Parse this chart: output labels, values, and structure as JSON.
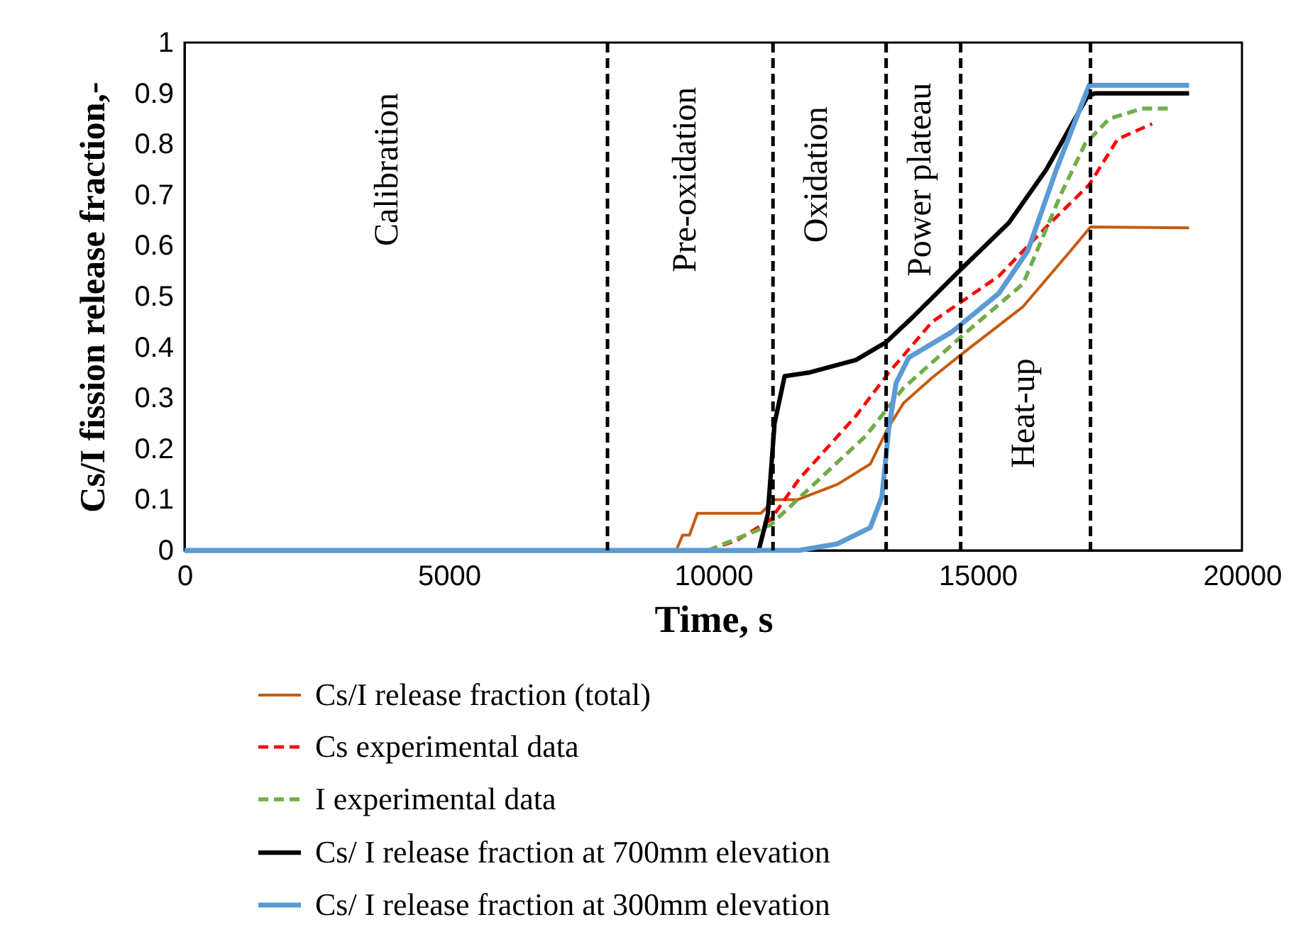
{
  "chart_data": {
    "type": "line",
    "xlabel": "Time, s",
    "ylabel": "Cs/I fission release fraction,-",
    "xlim": [
      0,
      20000
    ],
    "xticks": [
      0,
      5000,
      10000,
      15000,
      20000
    ],
    "ylim": [
      0,
      1
    ],
    "yticks": [
      0,
      0.1,
      0.2,
      0.3,
      0.4,
      0.5,
      0.6,
      0.7,
      0.8,
      0.9,
      1
    ],
    "legend": "bottom",
    "series": [
      {
        "name": "Cs/I release fraction (total)",
        "color": "#c55a11",
        "line_style": "solid",
        "x": [
          0,
          9300,
          9420,
          9550,
          9700,
          10900,
          11160,
          11600,
          12350,
          12970,
          13300,
          13600,
          14140,
          14680,
          15860,
          16760,
          17135,
          19000
        ],
        "values": [
          0,
          0,
          0.03,
          0.03,
          0.073,
          0.073,
          0.1,
          0.1,
          0.13,
          0.17,
          0.24,
          0.29,
          0.34,
          0.385,
          0.48,
          0.59,
          0.637,
          0.635
        ]
      },
      {
        "name": "Cs experimental data",
        "color": "#ff0000",
        "line_style": "dashed",
        "x": [
          9900,
          10450,
          11080,
          11620,
          12700,
          13320,
          14140,
          15400,
          16300,
          17110,
          17650,
          18300
        ],
        "values": [
          0,
          0.02,
          0.06,
          0.14,
          0.265,
          0.35,
          0.45,
          0.54,
          0.637,
          0.72,
          0.81,
          0.84
        ]
      },
      {
        "name": "I experimental data",
        "color": "#70ad47",
        "line_style": "dashed",
        "x": [
          9900,
          11080,
          11800,
          12890,
          13600,
          14680,
          15860,
          16570,
          17030,
          17490,
          18110,
          18650
        ],
        "values": [
          0,
          0.05,
          0.12,
          0.226,
          0.32,
          0.42,
          0.525,
          0.7,
          0.8,
          0.85,
          0.87,
          0.87
        ]
      },
      {
        "name": "Cs/ I release fraction at 700mm elevation",
        "color": "#000000",
        "line_style": "solid",
        "x": [
          0,
          10860,
          11030,
          11160,
          11350,
          11800,
          12700,
          13270,
          13780,
          14680,
          15590,
          16300,
          17080,
          17220,
          19000
        ],
        "values": [
          0,
          0,
          0.07,
          0.25,
          0.343,
          0.35,
          0.375,
          0.41,
          0.46,
          0.553,
          0.645,
          0.75,
          0.894,
          0.9,
          0.9
        ]
      },
      {
        "name": "Cs/ I release fraction at 300mm elevation",
        "color": "#5b9bd5",
        "line_style": "solid",
        "x": [
          0,
          11620,
          12350,
          12970,
          13190,
          13320,
          13460,
          13700,
          14510,
          15400,
          15950,
          16490,
          17110,
          19000
        ],
        "values": [
          0,
          0,
          0.013,
          0.045,
          0.105,
          0.24,
          0.33,
          0.38,
          0.43,
          0.506,
          0.59,
          0.75,
          0.916,
          0.916
        ]
      }
    ],
    "ref_lines": [
      {
        "axis": "x",
        "value": 8000,
        "color": "#000000",
        "line_style": "dashed"
      },
      {
        "axis": "x",
        "value": 11130,
        "color": "#000000",
        "line_style": "dashed"
      },
      {
        "axis": "x",
        "value": 13270,
        "color": "#000000",
        "line_style": "dashed"
      },
      {
        "axis": "x",
        "value": 14680,
        "color": "#000000",
        "line_style": "dashed"
      },
      {
        "axis": "x",
        "value": 17135,
        "color": "#000000",
        "line_style": "dashed"
      }
    ],
    "annotations": [
      "Calibration",
      "Pre-oxidation",
      "Oxidation",
      "Power plateau",
      "Heat-up"
    ]
  }
}
